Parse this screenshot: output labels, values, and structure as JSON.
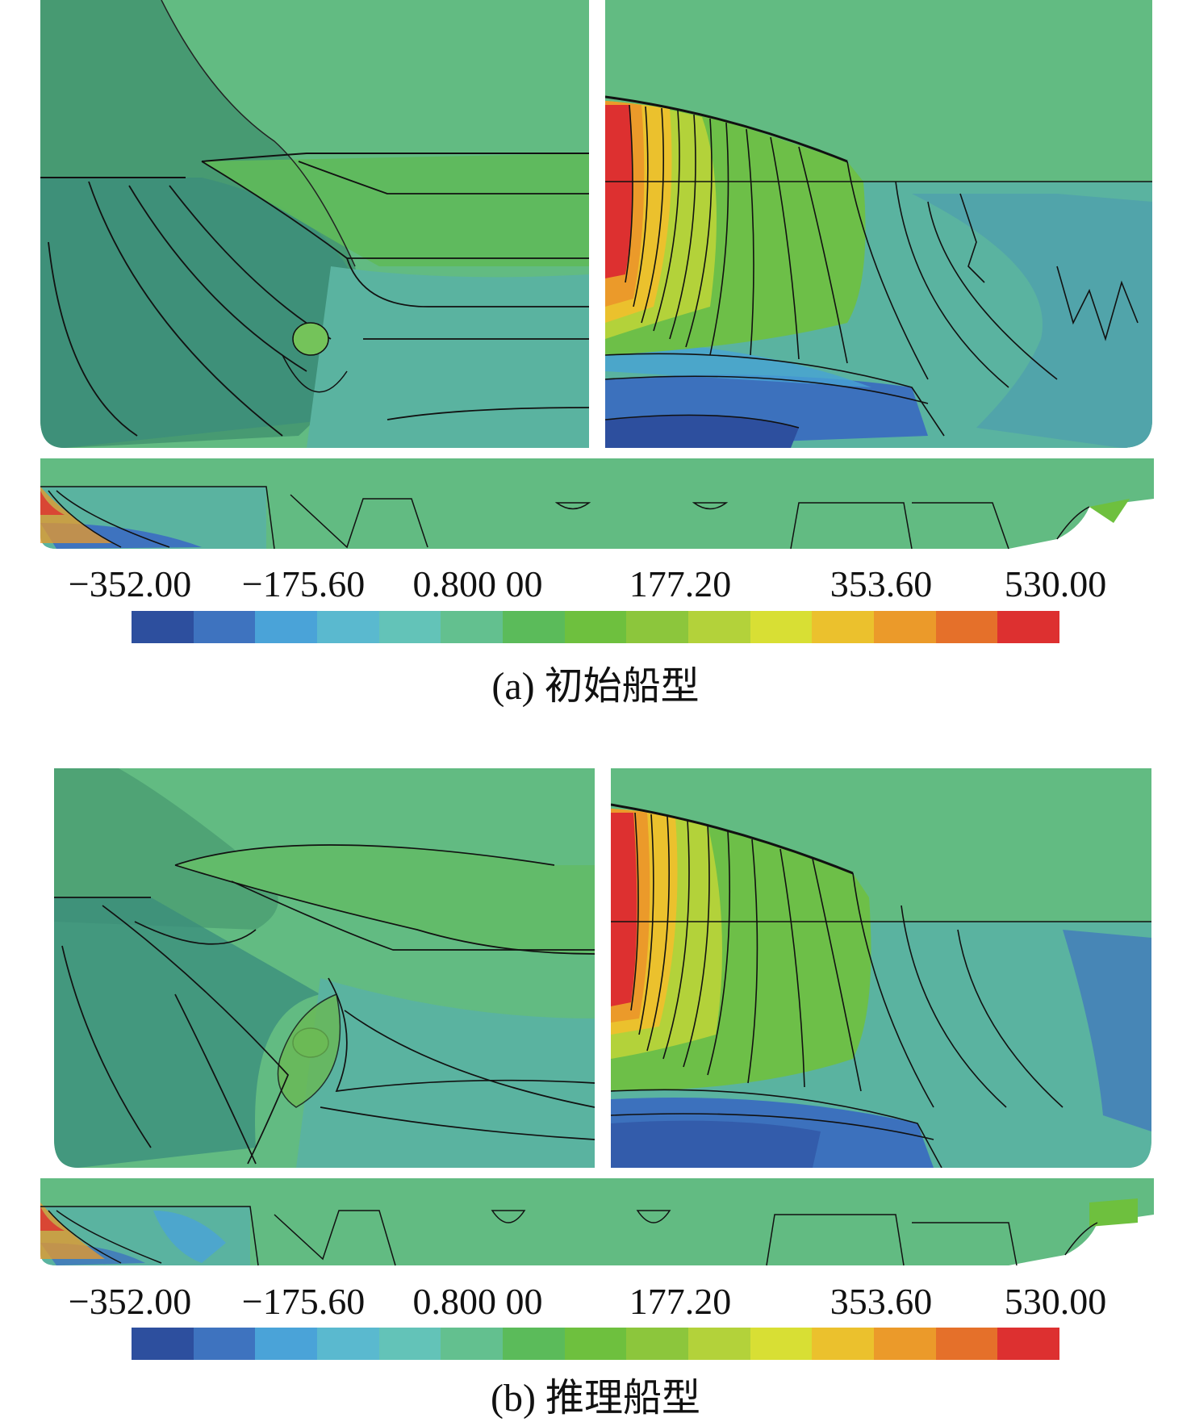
{
  "legend": {
    "tick_labels": [
      "−352.00",
      "−175.60",
      "0.800 00",
      "177.20",
      "353.60",
      "530.00"
    ],
    "colors": [
      "#2d4f9e",
      "#3e73bf",
      "#4aa3d8",
      "#5ab9cf",
      "#63c3b8",
      "#63c08f",
      "#5bbb5a",
      "#6ec03e",
      "#8cc63c",
      "#b3d23a",
      "#d8df34",
      "#ebc12d",
      "#eb9a2a",
      "#e5702a",
      "#dd3030"
    ]
  },
  "panels": [
    {
      "id": "a",
      "caption": "(a) 初始船型"
    },
    {
      "id": "b",
      "caption": "(b) 推理船型"
    }
  ],
  "colors": {
    "hull_green": "#64bd84",
    "hull_teal": "#5ab3a0",
    "hull_dark": "#3f8f6c",
    "contour": "#111111"
  }
}
